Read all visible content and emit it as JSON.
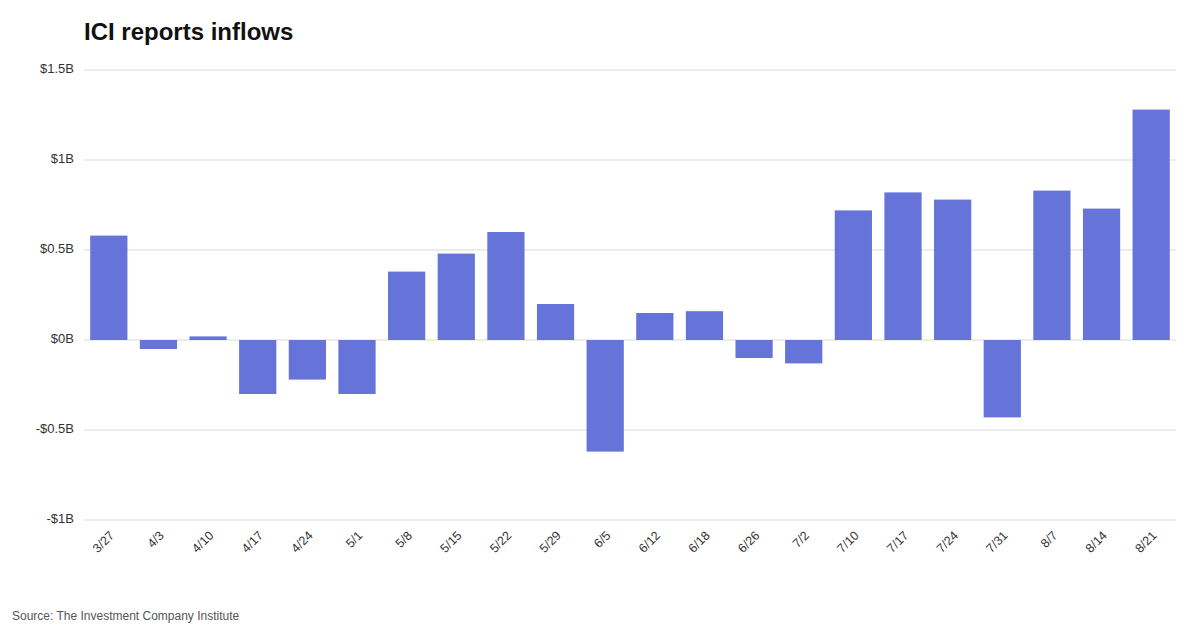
{
  "chart_data": {
    "type": "bar",
    "title": "ICI reports inflows",
    "categories": [
      "3/27",
      "4/3",
      "4/10",
      "4/17",
      "4/24",
      "5/1",
      "5/8",
      "5/15",
      "5/22",
      "5/29",
      "6/5",
      "6/12",
      "6/18",
      "6/26",
      "7/2",
      "7/10",
      "7/17",
      "7/24",
      "7/31",
      "8/7",
      "8/14",
      "8/21"
    ],
    "values": [
      0.58,
      -0.05,
      0.02,
      -0.3,
      -0.22,
      -0.3,
      0.38,
      0.48,
      0.6,
      0.2,
      -0.62,
      0.15,
      0.16,
      -0.1,
      -0.13,
      0.72,
      0.82,
      0.78,
      -0.43,
      0.83,
      0.73,
      1.28
    ],
    "color": "#6674d9",
    "ylim": [
      -1.0,
      1.5
    ],
    "yticks": [
      {
        "value": -1.0,
        "label": "-$1B"
      },
      {
        "value": -0.5,
        "label": "-$0.5B"
      },
      {
        "value": 0.0,
        "label": "$0B"
      },
      {
        "value": 0.5,
        "label": "$0.5B"
      },
      {
        "value": 1.0,
        "label": "$1B"
      },
      {
        "value": 1.5,
        "label": "$1.5B"
      }
    ],
    "grid": true,
    "annotations": [
      "Source: The Investment Company Institute"
    ]
  }
}
